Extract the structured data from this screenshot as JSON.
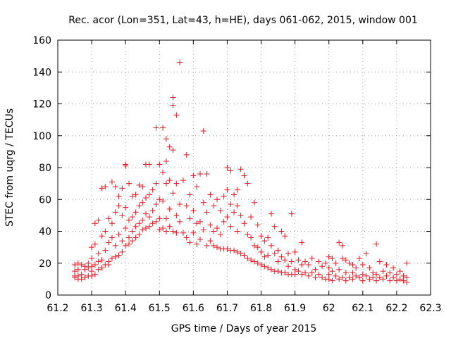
{
  "chart_data": {
    "type": "scatter",
    "title": "Rec. acor (Lon=351, Lat=43, h=HE), days 061-062, 2015, window 001",
    "xlabel": "GPS time / Days of year 2015",
    "ylabel": "STEC from uqrg / TECUs",
    "xlim": [
      61.2,
      62.3
    ],
    "ylim": [
      0,
      160
    ],
    "xticks": [
      "61.2",
      "61.3",
      "61.4",
      "61.5",
      "61.6",
      "61.7",
      "61.8",
      "61.9",
      "62",
      "62.1",
      "62.2",
      "62.3"
    ],
    "yticks": [
      "0",
      "20",
      "40",
      "60",
      "80",
      "100",
      "120",
      "140",
      "160"
    ],
    "grid": true,
    "marker": "plus",
    "color": "#e8141c",
    "series": [
      {
        "points": [
          [
            61.25,
            19
          ],
          [
            61.25,
            15
          ],
          [
            61.25,
            12
          ],
          [
            61.25,
            11
          ],
          [
            61.26,
            20
          ],
          [
            61.26,
            16
          ],
          [
            61.26,
            12
          ],
          [
            61.26,
            10
          ],
          [
            61.27,
            19
          ],
          [
            61.27,
            13
          ],
          [
            61.27,
            10
          ],
          [
            61.28,
            18
          ],
          [
            61.28,
            16
          ],
          [
            61.28,
            11
          ],
          [
            61.29,
            20
          ],
          [
            61.29,
            17
          ],
          [
            61.29,
            12
          ],
          [
            61.3,
            30
          ],
          [
            61.3,
            23
          ],
          [
            61.3,
            18
          ],
          [
            61.3,
            15
          ],
          [
            61.3,
            12
          ],
          [
            61.31,
            32
          ],
          [
            61.31,
            45
          ],
          [
            61.31,
            19
          ],
          [
            61.31,
            13
          ],
          [
            61.32,
            47
          ],
          [
            61.32,
            26
          ],
          [
            61.32,
            21
          ],
          [
            61.32,
            16
          ],
          [
            61.33,
            37
          ],
          [
            61.33,
            67
          ],
          [
            61.33,
            22
          ],
          [
            61.33,
            17
          ],
          [
            61.34,
            68
          ],
          [
            61.34,
            40
          ],
          [
            61.34,
            28
          ],
          [
            61.34,
            19
          ],
          [
            61.35,
            48
          ],
          [
            61.35,
            33
          ],
          [
            61.35,
            21
          ],
          [
            61.35,
            19
          ],
          [
            61.36,
            71
          ],
          [
            61.36,
            45
          ],
          [
            61.36,
            36
          ],
          [
            61.36,
            23
          ],
          [
            61.37,
            68
          ],
          [
            61.37,
            52
          ],
          [
            61.37,
            31
          ],
          [
            61.37,
            24
          ],
          [
            61.38,
            62
          ],
          [
            61.38,
            56
          ],
          [
            61.38,
            38
          ],
          [
            61.38,
            25
          ],
          [
            61.39,
            67
          ],
          [
            61.39,
            50
          ],
          [
            61.39,
            34
          ],
          [
            61.39,
            27
          ],
          [
            61.4,
            81
          ],
          [
            61.4,
            82
          ],
          [
            61.4,
            55
          ],
          [
            61.4,
            42
          ],
          [
            61.4,
            31
          ],
          [
            61.41,
            70
          ],
          [
            61.41,
            47
          ],
          [
            61.41,
            36
          ],
          [
            61.41,
            32
          ],
          [
            61.42,
            62
          ],
          [
            61.42,
            49
          ],
          [
            61.42,
            40
          ],
          [
            61.42,
            34
          ],
          [
            61.43,
            63
          ],
          [
            61.43,
            52
          ],
          [
            61.43,
            43
          ],
          [
            61.43,
            36
          ],
          [
            61.44,
            69
          ],
          [
            61.44,
            56
          ],
          [
            61.44,
            45
          ],
          [
            61.44,
            38
          ],
          [
            61.45,
            68
          ],
          [
            61.45,
            58
          ],
          [
            61.45,
            47
          ],
          [
            61.45,
            41
          ],
          [
            61.46,
            82
          ],
          [
            61.46,
            61
          ],
          [
            61.46,
            51
          ],
          [
            61.46,
            42
          ],
          [
            61.47,
            82
          ],
          [
            61.47,
            63
          ],
          [
            61.47,
            49
          ],
          [
            61.47,
            43
          ],
          [
            61.48,
            66
          ],
          [
            61.48,
            53
          ],
          [
            61.48,
            45
          ],
          [
            61.49,
            105
          ],
          [
            61.49,
            70
          ],
          [
            61.49,
            57
          ],
          [
            61.49,
            46
          ],
          [
            61.5,
            82
          ],
          [
            61.5,
            60
          ],
          [
            61.5,
            48
          ],
          [
            61.5,
            41
          ],
          [
            61.51,
            105
          ],
          [
            61.51,
            77
          ],
          [
            61.51,
            59
          ],
          [
            61.51,
            42
          ],
          [
            61.52,
            98
          ],
          [
            61.52,
            84
          ],
          [
            61.52,
            70
          ],
          [
            61.52,
            48
          ],
          [
            61.52,
            40
          ],
          [
            61.53,
            93
          ],
          [
            61.53,
            72
          ],
          [
            61.53,
            54
          ],
          [
            61.53,
            43
          ],
          [
            61.54,
            124
          ],
          [
            61.54,
            119
          ],
          [
            61.54,
            91
          ],
          [
            61.54,
            64
          ],
          [
            61.54,
            40
          ],
          [
            61.55,
            113
          ],
          [
            61.55,
            70
          ],
          [
            61.55,
            50
          ],
          [
            61.55,
            39
          ],
          [
            61.56,
            146
          ],
          [
            61.56,
            57
          ],
          [
            61.56,
            46
          ],
          [
            61.57,
            72
          ],
          [
            61.57,
            39
          ],
          [
            61.58,
            88
          ],
          [
            61.58,
            56
          ],
          [
            61.58,
            36
          ],
          [
            61.59,
            63
          ],
          [
            61.59,
            48
          ],
          [
            61.59,
            33
          ],
          [
            61.6,
            75
          ],
          [
            61.6,
            53
          ],
          [
            61.6,
            39
          ],
          [
            61.61,
            68
          ],
          [
            61.61,
            45
          ],
          [
            61.61,
            32
          ],
          [
            61.62,
            76
          ],
          [
            61.62,
            46
          ],
          [
            61.62,
            35
          ],
          [
            61.63,
            103
          ],
          [
            61.63,
            58
          ],
          [
            61.63,
            41
          ],
          [
            61.64,
            76
          ],
          [
            61.64,
            52
          ],
          [
            61.64,
            31
          ],
          [
            61.65,
            63
          ],
          [
            61.65,
            44
          ],
          [
            61.65,
            34
          ],
          [
            61.66,
            56
          ],
          [
            61.66,
            40
          ],
          [
            61.66,
            31
          ],
          [
            61.67,
            60
          ],
          [
            61.67,
            42
          ],
          [
            61.67,
            30
          ],
          [
            61.68,
            53
          ],
          [
            61.68,
            38
          ],
          [
            61.68,
            29
          ],
          [
            61.69,
            62
          ],
          [
            61.69,
            46
          ],
          [
            61.69,
            29
          ],
          [
            61.7,
            80
          ],
          [
            61.7,
            66
          ],
          [
            61.7,
            49
          ],
          [
            61.7,
            29
          ],
          [
            61.71,
            78
          ],
          [
            61.71,
            57
          ],
          [
            61.71,
            43
          ],
          [
            61.71,
            28
          ],
          [
            61.72,
            63
          ],
          [
            61.72,
            52
          ],
          [
            61.72,
            28
          ],
          [
            61.73,
            66
          ],
          [
            61.73,
            56
          ],
          [
            61.73,
            40
          ],
          [
            61.73,
            27
          ],
          [
            61.74,
            79
          ],
          [
            61.74,
            50
          ],
          [
            61.74,
            26
          ],
          [
            61.75,
            75
          ],
          [
            61.75,
            45
          ],
          [
            61.75,
            25
          ],
          [
            61.76,
            70
          ],
          [
            61.76,
            38
          ],
          [
            61.76,
            23
          ],
          [
            61.77,
            49
          ],
          [
            61.77,
            36
          ],
          [
            61.77,
            22
          ],
          [
            61.78,
            58
          ],
          [
            61.78,
            31
          ],
          [
            61.78,
            21
          ],
          [
            61.79,
            44
          ],
          [
            61.79,
            30
          ],
          [
            61.79,
            20
          ],
          [
            61.8,
            37
          ],
          [
            61.8,
            27
          ],
          [
            61.8,
            19
          ],
          [
            61.81,
            34
          ],
          [
            61.81,
            24
          ],
          [
            61.81,
            18
          ],
          [
            61.82,
            36
          ],
          [
            61.82,
            25
          ],
          [
            61.82,
            17
          ],
          [
            61.83,
            51
          ],
          [
            61.83,
            31
          ],
          [
            61.83,
            16
          ],
          [
            61.84,
            43
          ],
          [
            61.84,
            26
          ],
          [
            61.84,
            15
          ],
          [
            61.85,
            28
          ],
          [
            61.85,
            21
          ],
          [
            61.85,
            15
          ],
          [
            61.86,
            40
          ],
          [
            61.86,
            24
          ],
          [
            61.86,
            14
          ],
          [
            61.87,
            37
          ],
          [
            61.87,
            22
          ],
          [
            61.87,
            14
          ],
          [
            61.88,
            26
          ],
          [
            61.88,
            18
          ],
          [
            61.88,
            13
          ],
          [
            61.89,
            51
          ],
          [
            61.89,
            21
          ],
          [
            61.89,
            13
          ],
          [
            61.9,
            27
          ],
          [
            61.9,
            16
          ],
          [
            61.9,
            13
          ],
          [
            61.91,
            22
          ],
          [
            61.91,
            15
          ],
          [
            61.92,
            33
          ],
          [
            61.92,
            19
          ],
          [
            61.92,
            13
          ],
          [
            61.93,
            21
          ],
          [
            61.93,
            14
          ],
          [
            61.94,
            19
          ],
          [
            61.94,
            12
          ],
          [
            61.95,
            23
          ],
          [
            61.95,
            14
          ],
          [
            61.96,
            16
          ],
          [
            61.96,
            11
          ],
          [
            61.97,
            21
          ],
          [
            61.97,
            13
          ],
          [
            61.98,
            18
          ],
          [
            61.98,
            11
          ],
          [
            61.99,
            20
          ],
          [
            61.99,
            10
          ],
          [
            62.0,
            24
          ],
          [
            62.0,
            17
          ],
          [
            62.0,
            13
          ],
          [
            62.0,
            10
          ],
          [
            62.01,
            23
          ],
          [
            62.01,
            15
          ],
          [
            62.01,
            9
          ],
          [
            62.02,
            20
          ],
          [
            62.02,
            12
          ],
          [
            62.03,
            33
          ],
          [
            62.03,
            16
          ],
          [
            62.03,
            10
          ],
          [
            62.04,
            31
          ],
          [
            62.04,
            23
          ],
          [
            62.04,
            11
          ],
          [
            62.05,
            22
          ],
          [
            62.05,
            14
          ],
          [
            62.05,
            9
          ],
          [
            62.06,
            20
          ],
          [
            62.06,
            11
          ],
          [
            62.07,
            19
          ],
          [
            62.07,
            14
          ],
          [
            62.07,
            10
          ],
          [
            62.08,
            17
          ],
          [
            62.08,
            12
          ],
          [
            62.09,
            23
          ],
          [
            62.09,
            11
          ],
          [
            62.1,
            19
          ],
          [
            62.1,
            13
          ],
          [
            62.1,
            9
          ],
          [
            62.11,
            26
          ],
          [
            62.11,
            12
          ],
          [
            62.12,
            17
          ],
          [
            62.12,
            10
          ],
          [
            62.13,
            14
          ],
          [
            62.13,
            11
          ],
          [
            62.14,
            32
          ],
          [
            62.14,
            13
          ],
          [
            62.14,
            9
          ],
          [
            62.15,
            21
          ],
          [
            62.15,
            11
          ],
          [
            62.16,
            15
          ],
          [
            62.16,
            10
          ],
          [
            62.17,
            19
          ],
          [
            62.17,
            12
          ],
          [
            62.18,
            14
          ],
          [
            62.18,
            9
          ],
          [
            62.19,
            17
          ],
          [
            62.19,
            11
          ],
          [
            62.2,
            13
          ],
          [
            62.2,
            9
          ],
          [
            62.21,
            15
          ],
          [
            62.21,
            10
          ],
          [
            62.22,
            12
          ],
          [
            62.22,
            9
          ],
          [
            62.23,
            20
          ],
          [
            62.23,
            11
          ],
          [
            62.23,
            8
          ]
        ]
      }
    ]
  }
}
